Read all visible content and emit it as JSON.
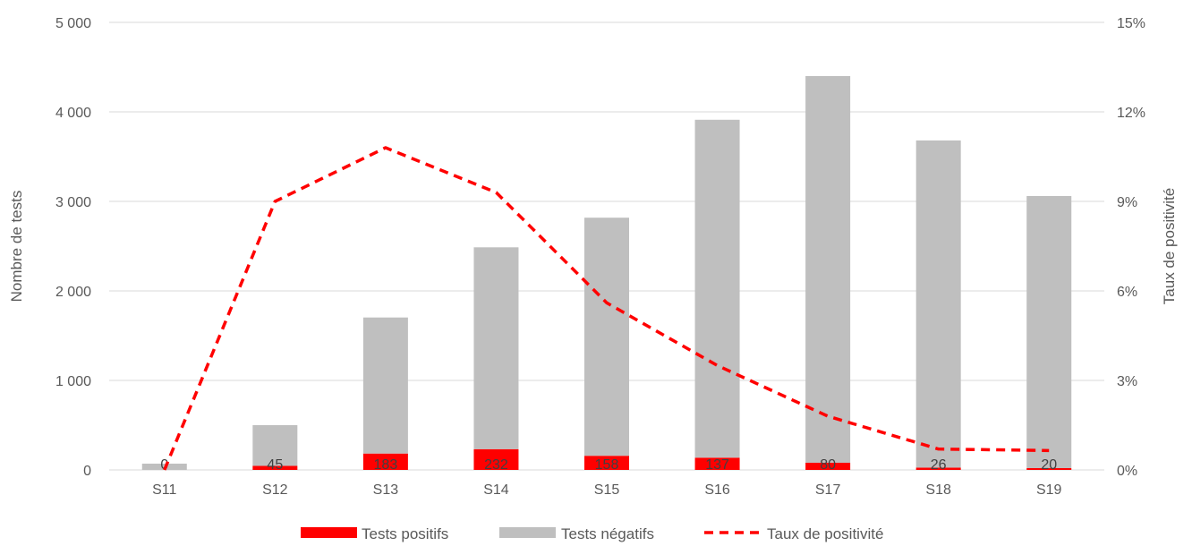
{
  "chart_data": {
    "type": "bar",
    "stacked": true,
    "categories": [
      "S11",
      "S12",
      "S13",
      "S14",
      "S15",
      "S16",
      "S17",
      "S18",
      "S19"
    ],
    "series": [
      {
        "name": "Tests positifs",
        "type": "bar",
        "axis": "left",
        "color": "#ff0000",
        "values": [
          0,
          45,
          183,
          232,
          158,
          137,
          80,
          26,
          20
        ],
        "data_labels": [
          "0",
          "45",
          "183",
          "232",
          "158",
          "137",
          "80",
          "26",
          "20"
        ]
      },
      {
        "name": "Tests négatifs",
        "type": "bar",
        "axis": "left",
        "color": "#bfbfbf",
        "values": [
          70,
          455,
          1520,
          2255,
          2660,
          3775,
          4320,
          3655,
          3040
        ]
      },
      {
        "name": "Taux de positivité",
        "type": "line",
        "style": "dashed",
        "axis": "right",
        "color": "#ff0000",
        "values": [
          0.0,
          9.0,
          10.8,
          9.3,
          5.6,
          3.5,
          1.8,
          0.7,
          0.65
        ]
      }
    ],
    "ylabel": "Nombre de tests",
    "y2label": "Taux de positivité",
    "ylim": [
      0,
      5000
    ],
    "y2lim": [
      0,
      15
    ],
    "yticks": [
      "0",
      "1 000",
      "2 000",
      "3 000",
      "4 000",
      "5 000"
    ],
    "y2ticks": [
      "0%",
      "3%",
      "6%",
      "9%",
      "12%",
      "15%"
    ],
    "grid": true,
    "legend": "bottom"
  }
}
